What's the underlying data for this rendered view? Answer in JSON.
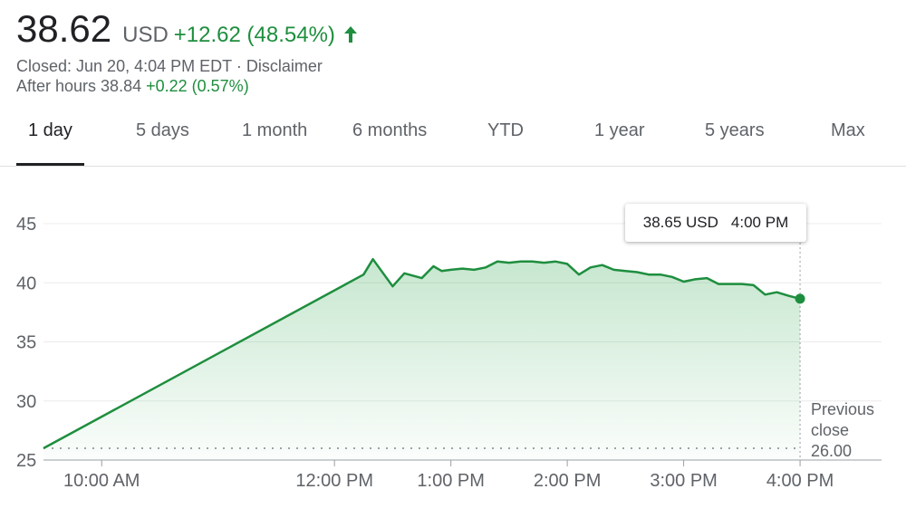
{
  "quote": {
    "price": "38.62",
    "currency": "USD",
    "change": "+12.62 (48.54%)",
    "closed_label": "Closed: Jun 20, 4:04 PM EDT",
    "separator": "·",
    "disclaimer": "Disclaimer",
    "after_hours_label": "After hours 38.84",
    "after_hours_change": "+0.22 (0.57%)"
  },
  "tabs": [
    "1 day",
    "5 days",
    "1 month",
    "6 months",
    "YTD",
    "1 year",
    "5 years",
    "Max"
  ],
  "active_tab": 0,
  "tooltip": {
    "value": "38.65 USD",
    "time": "4:00 PM"
  },
  "previous_close": {
    "line1": "Previous",
    "line2": "close",
    "value": "26.00"
  },
  "colors": {
    "line": "#1e8e3e",
    "fill": "#34a853",
    "text": "#202124",
    "muted": "#5f6368",
    "grid": "#ececec"
  },
  "chart_data": {
    "type": "area",
    "y_ticks": [
      25,
      30,
      35,
      40,
      45
    ],
    "ylim": [
      25,
      46
    ],
    "x_ticks": [
      {
        "t": 10.0,
        "label": "10:00 AM"
      },
      {
        "t": 12.0,
        "label": "12:00 PM"
      },
      {
        "t": 13.0,
        "label": "1:00 PM"
      },
      {
        "t": 14.0,
        "label": "2:00 PM"
      },
      {
        "t": 15.0,
        "label": "3:00 PM"
      },
      {
        "t": 16.0,
        "label": "4:00 PM"
      }
    ],
    "xlim": [
      9.5,
      16.7
    ],
    "grid": true,
    "previous_close": 26.0,
    "series": [
      {
        "x": [
          9.5,
          12.25,
          12.33,
          12.5,
          12.6,
          12.75,
          12.85,
          12.92,
          13.0,
          13.1,
          13.2,
          13.3,
          13.4,
          13.5,
          13.6,
          13.7,
          13.8,
          13.9,
          14.0,
          14.1,
          14.2,
          14.3,
          14.4,
          14.5,
          14.6,
          14.7,
          14.8,
          14.9,
          15.0,
          15.1,
          15.2,
          15.3,
          15.4,
          15.5,
          15.6,
          15.7,
          15.8,
          15.9,
          16.0
        ],
        "y": [
          26.0,
          40.7,
          42.0,
          39.7,
          40.8,
          40.4,
          41.4,
          41.0,
          41.1,
          41.2,
          41.1,
          41.3,
          41.8,
          41.7,
          41.8,
          41.8,
          41.7,
          41.8,
          41.6,
          40.7,
          41.3,
          41.5,
          41.1,
          41.0,
          40.9,
          40.7,
          40.7,
          40.5,
          40.1,
          40.3,
          40.4,
          39.9,
          39.9,
          39.9,
          39.8,
          39.0,
          39.2,
          38.9,
          38.65
        ]
      }
    ]
  }
}
